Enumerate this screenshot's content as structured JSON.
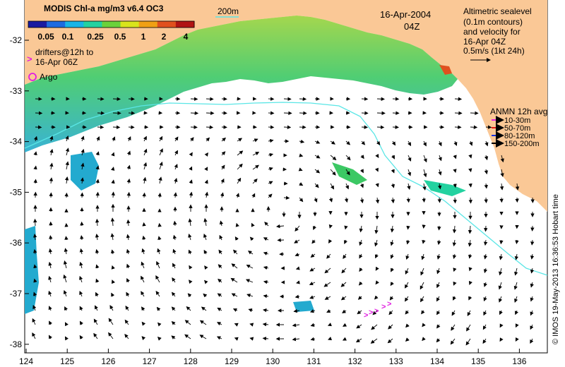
{
  "header": {
    "product_title": "MODIS Chl-a mg/m3 v6.4 OC3",
    "date": "16-Apr-2004",
    "time": "04Z",
    "isobath_label": "200m"
  },
  "colorbar": {
    "tick_labels": [
      "0.05",
      "0.1",
      "0.25",
      "0.5",
      "1",
      "2",
      "4"
    ],
    "colors": [
      "#1a1aa0",
      "#1e6be0",
      "#19b4e6",
      "#23d2a0",
      "#6ad23a",
      "#d9e41c",
      "#f0a014",
      "#e0501e",
      "#b01414"
    ]
  },
  "drifters": {
    "line1": "drifters@12h to",
    "line2": "16-Apr 06Z",
    "marker": ">",
    "color": "#e01ee0"
  },
  "argo": {
    "label": "Argo",
    "color": "#e01ee0"
  },
  "altimetry": {
    "lines": [
      "Altimetric sealevel",
      "(0.1m contours)",
      "and velocity for",
      "16-Apr 04Z",
      "0.5m/s (1kt 24h)"
    ]
  },
  "anmn": {
    "title": "ANMN 12h avg",
    "items": [
      {
        "label": "10-30m",
        "color": "#e01ee0"
      },
      {
        "label": "50-70m",
        "color": "#e01414"
      },
      {
        "label": "80-120m",
        "color": "#1432e0"
      },
      {
        "label": "150-200m",
        "color": "#000000"
      }
    ]
  },
  "axes": {
    "x_ticks": [
      "124",
      "125",
      "126",
      "127",
      "128",
      "129",
      "130",
      "131",
      "132",
      "133",
      "134",
      "135",
      "136"
    ],
    "y_ticks": [
      "-32",
      "-33",
      "-34",
      "-35",
      "-36",
      "-37",
      "-38"
    ]
  },
  "credit": "© IMOS 19-May-2013 16:36:53 Hobart time",
  "colors": {
    "land": "#fac896",
    "ocean": "#ffffff",
    "isobath": "#5ae6e6"
  }
}
